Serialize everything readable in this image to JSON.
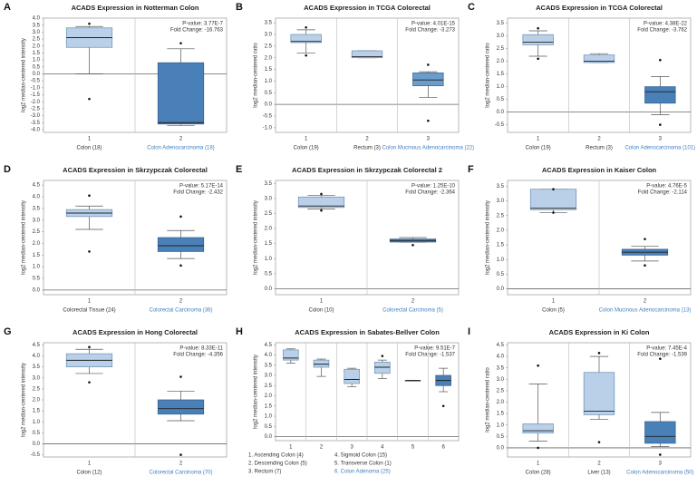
{
  "chart_data": [
    {
      "type": "box",
      "panel": "A",
      "title": "ACADS Expression in Notterman Colon",
      "ylabel": "log2 median-centered intensity",
      "annotation": [
        "P-value: 3.77E-7",
        "Fold Change: -16.763"
      ],
      "zero_line": true,
      "ylim": [
        -4.2,
        4.0
      ],
      "yticks": [
        {
          "value": 4,
          "label": "4.0"
        },
        3.5,
        {
          "value": 3,
          "label": "3.0"
        },
        2.5,
        {
          "value": 2,
          "label": "2.0"
        },
        1.5,
        {
          "value": 1,
          "label": "1.0"
        },
        0.5,
        {
          "value": 0,
          "label": "0.0"
        },
        -0.5,
        {
          "value": -1,
          "label": "-1.0"
        },
        -1.5,
        {
          "value": -2,
          "label": "-2.0"
        },
        -2.5,
        {
          "value": -3,
          "label": "-3.0"
        },
        -3.5,
        {
          "value": -4,
          "label": "-4.0"
        }
      ],
      "categories": [
        "1",
        "2"
      ],
      "category_names": [
        "Colon (18)",
        "Colon Adenocarcinoma (18)"
      ],
      "boxes": [
        {
          "min": 0.0,
          "q1": 1.9,
          "median": 2.6,
          "q3": 3.3,
          "max": 3.4,
          "outliers": [
            3.6,
            -1.8
          ],
          "color": "#b9d0e8",
          "label_color": "#333333"
        },
        {
          "min": -3.7,
          "q1": -3.6,
          "median": -3.5,
          "q3": 0.8,
          "max": 1.8,
          "outliers": [
            2.2
          ],
          "color": "#4a80b8",
          "label_color": "#3f7fc0"
        }
      ]
    },
    {
      "type": "box",
      "panel": "B",
      "title": "ACADS Expression in TCGA Colorectal",
      "ylabel": "log2 median-centered ratio",
      "annotation": [
        "P-value: 4.01E-15",
        "Fold Change: -3.273"
      ],
      "zero_line": true,
      "ylim": [
        -1.2,
        3.7
      ],
      "yticks": [
        3.5,
        {
          "value": 3,
          "label": "3.0"
        },
        2.5,
        {
          "value": 2,
          "label": "2.0"
        },
        1.5,
        {
          "value": 1,
          "label": "1.0"
        },
        0.5,
        {
          "value": 0,
          "label": "0.0"
        },
        -0.5,
        {
          "value": -1,
          "label": "-1.0"
        }
      ],
      "categories": [
        "1",
        "2",
        "3"
      ],
      "category_names": [
        "Colon (19)",
        "Rectum (3)",
        "Colon Mucinous Adenocarcinoma (22)"
      ],
      "boxes": [
        {
          "min": 2.2,
          "q1": 2.65,
          "median": 2.7,
          "q3": 3.0,
          "max": 3.2,
          "outliers": [
            3.3,
            2.1
          ],
          "color": "#b9d0e8",
          "label_color": "#333333"
        },
        {
          "min": 2.0,
          "q1": 2.0,
          "median": 2.05,
          "q3": 2.3,
          "max": 2.3,
          "outliers": [],
          "color": "#b9d0e8",
          "label_color": "#333333"
        },
        {
          "min": 0.3,
          "q1": 0.8,
          "median": 1.05,
          "q3": 1.35,
          "max": 1.4,
          "outliers": [
            1.7,
            -0.7
          ],
          "color": "#6b9ccc",
          "label_color": "#3f7fc0"
        }
      ]
    },
    {
      "type": "box",
      "panel": "C",
      "title": "ACADS Expression in TCGA Colorectal",
      "ylabel": "log2 median-centered ratio",
      "annotation": [
        "P-value: 4.38E-22",
        "Fold Change: -3.762"
      ],
      "zero_line": true,
      "ylim": [
        -0.8,
        3.7
      ],
      "yticks": [
        3.5,
        {
          "value": 3,
          "label": "3.0"
        },
        2.5,
        {
          "value": 2,
          "label": "2.0"
        },
        1.5,
        {
          "value": 1,
          "label": "1.0"
        },
        0.5,
        {
          "value": 0,
          "label": "0.0"
        },
        -0.5
      ],
      "categories": [
        "1",
        "2",
        "3"
      ],
      "category_names": [
        "Colon (19)",
        "Rectum (3)",
        "Colon Adenocarcinoma (101)"
      ],
      "boxes": [
        {
          "min": 2.2,
          "q1": 2.65,
          "median": 2.75,
          "q3": 3.05,
          "max": 3.2,
          "outliers": [
            3.3,
            2.1
          ],
          "color": "#b9d0e8",
          "label_color": "#333333"
        },
        {
          "min": 1.95,
          "q1": 1.95,
          "median": 2.0,
          "q3": 2.25,
          "max": 2.3,
          "outliers": [],
          "color": "#b9d0e8",
          "label_color": "#333333"
        },
        {
          "min": -0.1,
          "q1": 0.35,
          "median": 0.8,
          "q3": 1.0,
          "max": 1.4,
          "outliers": [
            2.05,
            -0.5
          ],
          "color": "#4a80b8",
          "label_color": "#3f7fc0"
        }
      ]
    },
    {
      "type": "box",
      "panel": "D",
      "title": "ACADS Expression in Skrzypczak Colorectal",
      "ylabel": "log2 median-centered intensity",
      "annotation": [
        "P-value: 5.17E-14",
        "Fold Change: -2.432"
      ],
      "zero_line": true,
      "ylim": [
        -0.2,
        4.7
      ],
      "yticks": [
        4.5,
        {
          "value": 4,
          "label": "4.0"
        },
        3.5,
        {
          "value": 3,
          "label": "3.0"
        },
        2.5,
        {
          "value": 2,
          "label": "2.0"
        },
        1.5,
        {
          "value": 1,
          "label": "1.0"
        },
        0.5,
        {
          "value": 0,
          "label": "0.0"
        }
      ],
      "categories": [
        "1",
        "2"
      ],
      "category_names": [
        "Colorectal Tissue (24)",
        "Colorectal Carcinoma (36)"
      ],
      "boxes": [
        {
          "min": 2.6,
          "q1": 3.15,
          "median": 3.3,
          "q3": 3.45,
          "max": 3.6,
          "outliers": [
            4.05,
            1.65
          ],
          "color": "#b9d0e8",
          "label_color": "#333333"
        },
        {
          "min": 1.35,
          "q1": 1.65,
          "median": 1.9,
          "q3": 2.25,
          "max": 2.55,
          "outliers": [
            3.15,
            1.05
          ],
          "color": "#4a80b8",
          "label_color": "#3f7fc0"
        }
      ]
    },
    {
      "type": "box",
      "panel": "E",
      "title": "ACADS Expression in Skrzypczak Colorectal 2",
      "ylabel": "log2 median-centered intensity",
      "annotation": [
        "P-value: 1.25E-10",
        "Fold Change: -2.364"
      ],
      "zero_line": true,
      "ylim": [
        -0.2,
        3.6
      ],
      "yticks": [
        3.5,
        {
          "value": 3,
          "label": "3.0"
        },
        2.5,
        {
          "value": 2,
          "label": "2.0"
        },
        1.5,
        {
          "value": 1,
          "label": "1.0"
        },
        0.5,
        {
          "value": 0,
          "label": "0.0"
        }
      ],
      "categories": [
        "1",
        "2"
      ],
      "category_names": [
        "Colon (10)",
        "Colorectal Carcinoma (5)"
      ],
      "boxes": [
        {
          "min": 2.65,
          "q1": 2.7,
          "median": 2.75,
          "q3": 3.05,
          "max": 3.1,
          "outliers": [
            3.15,
            2.6
          ],
          "color": "#b9d0e8",
          "label_color": "#333333"
        },
        {
          "min": 1.55,
          "q1": 1.55,
          "median": 1.6,
          "q3": 1.65,
          "max": 1.7,
          "outliers": [
            1.45
          ],
          "color": "#4a80b8",
          "label_color": "#3f7fc0"
        }
      ]
    },
    {
      "type": "box",
      "panel": "F",
      "title": "ACADS Expression in Kaiser Colon",
      "ylabel": "log2 median-centered intensity",
      "annotation": [
        "P-value: 4.76E-5",
        "Fold Change: -2.114"
      ],
      "zero_line": true,
      "ylim": [
        -0.2,
        3.7
      ],
      "yticks": [
        3.5,
        {
          "value": 3,
          "label": "3.0"
        },
        2.5,
        {
          "value": 2,
          "label": "2.0"
        },
        1.5,
        {
          "value": 1,
          "label": "1.0"
        },
        0.5,
        {
          "value": 0,
          "label": "0.0"
        }
      ],
      "categories": [
        "1",
        "2"
      ],
      "category_names": [
        "Colon (5)",
        "Colon Mucinous Adenocarcinoma (13)"
      ],
      "boxes": [
        {
          "min": 2.6,
          "q1": 2.7,
          "median": 2.75,
          "q3": 3.4,
          "max": 3.4,
          "outliers": [
            3.4,
            2.6
          ],
          "color": "#b9d0e8",
          "label_color": "#333333"
        },
        {
          "min": 0.95,
          "q1": 1.15,
          "median": 1.25,
          "q3": 1.35,
          "max": 1.45,
          "outliers": [
            1.7,
            0.8
          ],
          "color": "#4a80b8",
          "label_color": "#3f7fc0"
        }
      ]
    },
    {
      "type": "box",
      "panel": "G",
      "title": "ACADS Expression in Hong Colorectal",
      "ylabel": "log2 median-centered intensity",
      "annotation": [
        "P-value: 8.33E-11",
        "Fold Change: -4.356"
      ],
      "zero_line": true,
      "ylim": [
        -0.6,
        4.6
      ],
      "yticks": [
        4.5,
        {
          "value": 4,
          "label": "4.0"
        },
        3.5,
        {
          "value": 3,
          "label": "3.0"
        },
        2.5,
        {
          "value": 2,
          "label": "2.0"
        },
        1.5,
        {
          "value": 1,
          "label": "1.0"
        },
        0.5,
        {
          "value": 0,
          "label": "0.0"
        },
        -0.5
      ],
      "categories": [
        "1",
        "2"
      ],
      "category_names": [
        "Colon (12)",
        "Colorectal Carcinoma (70)"
      ],
      "boxes": [
        {
          "min": 3.2,
          "q1": 3.5,
          "median": 3.8,
          "q3": 4.1,
          "max": 4.3,
          "outliers": [
            4.4,
            2.8
          ],
          "color": "#b9d0e8",
          "label_color": "#333333"
        },
        {
          "min": 1.05,
          "q1": 1.35,
          "median": 1.6,
          "q3": 2.0,
          "max": 2.4,
          "outliers": [
            3.05,
            -0.5
          ],
          "color": "#4a80b8",
          "label_color": "#3f7fc0"
        }
      ]
    },
    {
      "type": "box",
      "panel": "H",
      "title": "ACADS Expression in Sabates-Bellver Colon",
      "ylabel": "log2 median-centered intensity",
      "annotation": [
        "P-value: 9.51E-7",
        "Fold Change: -1.537"
      ],
      "zero_line": true,
      "ylim": [
        -0.2,
        4.6
      ],
      "yticks": [
        4.5,
        {
          "value": 4,
          "label": "4.0"
        },
        3.5,
        {
          "value": 3,
          "label": "3.0"
        },
        2.5,
        {
          "value": 2,
          "label": "2.0"
        },
        1.5,
        {
          "value": 1,
          "label": "1.0"
        },
        0.5,
        {
          "value": 0,
          "label": "0.0"
        }
      ],
      "categories": [
        "1",
        "2",
        "3",
        "4",
        "5",
        "6"
      ],
      "category_names": [
        "1. Ascending Colon (4)",
        "2. Descending Colon (5)",
        "3. Rectum (7)",
        "4. Sigmoid Colon (15)",
        "5. Transverse Colon (1)",
        "6. Colon Adenoma (25)"
      ],
      "boxes": [
        {
          "min": 3.6,
          "q1": 3.75,
          "median": 3.85,
          "q3": 4.25,
          "max": 4.3,
          "outliers": [],
          "color": "#b9d0e8",
          "label_color": "#333333"
        },
        {
          "min": 2.95,
          "q1": 3.4,
          "median": 3.55,
          "q3": 3.75,
          "max": 3.8,
          "outliers": [],
          "color": "#b9d0e8",
          "label_color": "#333333"
        },
        {
          "min": 2.45,
          "q1": 2.6,
          "median": 2.8,
          "q3": 3.3,
          "max": 3.35,
          "outliers": [],
          "color": "#b9d0e8",
          "label_color": "#333333"
        },
        {
          "min": 2.85,
          "q1": 3.1,
          "median": 3.4,
          "q3": 3.65,
          "max": 3.75,
          "outliers": [
            3.95
          ],
          "color": "#b9d0e8",
          "label_color": "#333333"
        },
        {
          "min": 2.75,
          "q1": 2.75,
          "median": 2.75,
          "q3": 2.75,
          "max": 2.75,
          "outliers": [],
          "color": "#b9d0e8",
          "label_color": "#333333"
        },
        {
          "min": 2.2,
          "q1": 2.5,
          "median": 2.75,
          "q3": 3.0,
          "max": 3.35,
          "outliers": [
            1.5
          ],
          "color": "#4a80b8",
          "label_color": "#3f7fc0"
        }
      ]
    },
    {
      "type": "box",
      "panel": "I",
      "title": "ACADS Expression in Ki Colon",
      "ylabel": "log2 median-centered ratio",
      "annotation": [
        "P-value: 7.45E-4",
        "Fold Change: -1.539"
      ],
      "zero_line": true,
      "ylim": [
        -0.4,
        4.6
      ],
      "yticks": [
        4.5,
        {
          "value": 4,
          "label": "4.0"
        },
        3.5,
        {
          "value": 3,
          "label": "3.0"
        },
        2.5,
        {
          "value": 2,
          "label": "2.0"
        },
        1.5,
        {
          "value": 1,
          "label": "1.0"
        },
        0.5,
        {
          "value": 0,
          "label": "0.0"
        }
      ],
      "categories": [
        "1",
        "2",
        "3"
      ],
      "category_names": [
        "Colon (28)",
        "Liver (13)",
        "Colon Adenocarcinoma (50)"
      ],
      "boxes": [
        {
          "min": 0.3,
          "q1": 0.65,
          "median": 0.75,
          "q3": 1.05,
          "max": 2.8,
          "outliers": [
            3.6,
            0.0
          ],
          "color": "#b9d0e8",
          "label_color": "#333333"
        },
        {
          "min": 1.25,
          "q1": 1.45,
          "median": 1.6,
          "q3": 3.3,
          "max": 4.0,
          "outliers": [
            4.15,
            0.25
          ],
          "color": "#b9d0e8",
          "label_color": "#333333"
        },
        {
          "min": 0.05,
          "q1": 0.2,
          "median": 0.5,
          "q3": 1.15,
          "max": 1.55,
          "outliers": [
            3.9,
            -0.3
          ],
          "color": "#4a80b8",
          "label_color": "#3f7fc0"
        }
      ]
    }
  ]
}
